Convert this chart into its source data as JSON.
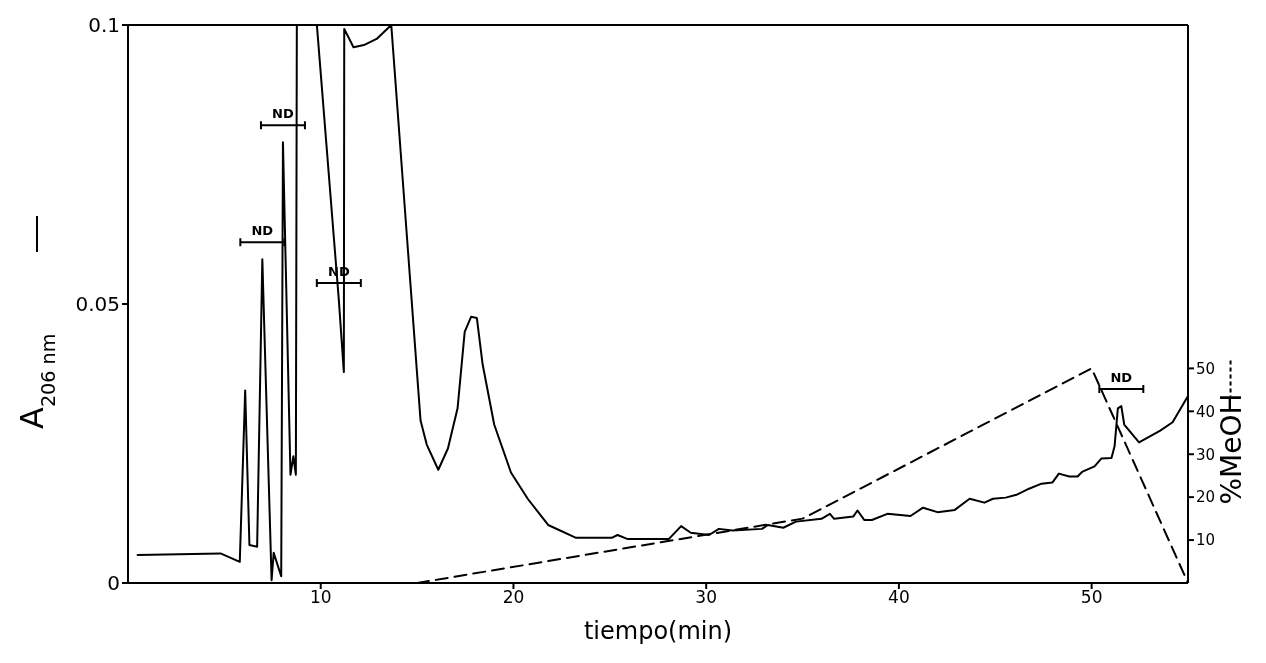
{
  "chart_data": {
    "type": "line",
    "xlabel": "tiempo(min)",
    "ylabel": "A$_{206 nm}$",
    "y2label": "%MeOH",
    "xlim": [
      0,
      55
    ],
    "xticks": [
      10,
      20,
      30,
      40,
      50
    ],
    "ylim": [
      0,
      0.1
    ],
    "yticks": [
      0,
      0.05,
      0.1
    ],
    "y2lim": [
      0,
      130
    ],
    "y2ticks": [
      10,
      20,
      30,
      40,
      50
    ],
    "marker": "none",
    "series": [
      {
        "color": "#000000",
        "line_style": "solid",
        "axis": "y",
        "x": [
          0.5,
          4.8,
          5.8,
          6.08,
          6.3,
          6.7,
          6.97,
          7.45,
          7.56,
          7.95,
          8.04,
          8.43,
          8.58,
          8.71,
          8.76,
          9.3,
          9.8,
          10.94,
          11.2,
          11.22,
          11.7,
          12.24,
          12.9,
          13.66,
          14.53,
          15.18,
          15.5,
          16.1,
          16.6,
          17.1,
          17.47,
          17.8,
          18.1,
          18.4,
          19.0,
          19.87,
          20.74,
          21.8,
          23.25,
          25.1,
          25.4,
          25.9,
          28.07,
          28.7,
          29.2,
          30.15,
          30.66,
          31.36,
          32.9,
          33.2,
          34.0,
          34.66,
          35.98,
          36.42,
          36.64,
          37.63,
          37.85,
          38.2,
          38.6,
          39.4,
          40.6,
          41.25,
          42.0,
          42.9,
          43.67,
          44.44,
          44.88,
          45.54,
          46.1,
          46.75,
          47.4,
          47.96,
          48.3,
          48.84,
          49.27,
          49.5,
          50.15,
          50.5,
          51.03,
          51.19,
          51.36,
          51.54,
          51.69,
          52.46,
          53.56,
          54.2,
          55.0
        ],
        "values": [
          0.005,
          0.0053,
          0.0038,
          0.0345,
          0.0068,
          0.0065,
          0.058,
          0.0005,
          0.0054,
          0.0012,
          0.079,
          0.0194,
          0.0227,
          0.0194,
          0.1,
          null,
          0.1,
          0.0507,
          0.0378,
          0.0993,
          0.096,
          0.0964,
          0.0975,
          0.1,
          0.0594,
          0.0291,
          0.0248,
          0.0203,
          0.0241,
          0.0313,
          0.045,
          0.0477,
          0.0475,
          0.0392,
          0.0284,
          0.0198,
          0.0151,
          0.0104,
          0.0081,
          0.0081,
          0.0086,
          0.0079,
          0.0079,
          0.0102,
          0.009,
          0.0086,
          0.0097,
          0.0094,
          0.0097,
          0.0104,
          0.0099,
          0.011,
          0.0115,
          0.0124,
          0.0115,
          0.0119,
          0.013,
          0.0113,
          0.0113,
          0.0124,
          0.012,
          0.0135,
          0.0127,
          0.0131,
          0.0151,
          0.0144,
          0.0151,
          0.0153,
          0.0158,
          0.0169,
          0.0178,
          0.018,
          0.0196,
          0.0191,
          0.0191,
          0.0199,
          0.0209,
          0.0223,
          0.0224,
          0.0245,
          0.0313,
          0.0317,
          0.0284,
          0.0252,
          0.0273,
          0.0288,
          0.0335
        ]
      },
      {
        "color": "#000000",
        "line_style": "dashed",
        "axis": "y2",
        "x": [
          15,
          35,
          50,
          55
        ],
        "values": [
          0,
          15,
          50,
          0
        ]
      }
    ],
    "annotations": [
      {
        "text": "ND",
        "x": 6.97,
        "y": 0.058
      },
      {
        "text": "ND",
        "x": 8.04,
        "y": 0.079
      },
      {
        "text": "ND",
        "x": 10.94,
        "y": 0.0507
      },
      {
        "text": "ND",
        "x": 51.54,
        "y": 0.0317
      }
    ]
  }
}
